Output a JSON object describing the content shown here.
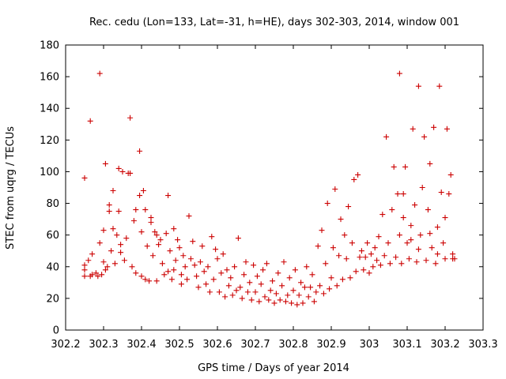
{
  "chart_data": {
    "type": "scatter",
    "title": "Rec. cedu (Lon=133, Lat=-31, h=HE), days 302-303, 2014, window 001",
    "xlabel": "GPS time / Days of year 2014",
    "ylabel": "STEC from uqrg / TECUs",
    "xlim": [
      302.2,
      303.3
    ],
    "ylim": [
      0,
      180
    ],
    "xticks": [
      "302.2",
      "302.3",
      "302.4",
      "302.5",
      "302.6",
      "302.7",
      "302.8",
      "302.9",
      "303",
      "303.1",
      "303.2",
      "303.3"
    ],
    "yticks": [
      "0",
      "20",
      "40",
      "60",
      "80",
      "100",
      "120",
      "140",
      "160",
      "180"
    ],
    "grid": false,
    "marker": "+",
    "marker_color": "#cc0000",
    "points": [
      [
        302.25,
        96
      ],
      [
        302.25,
        41
      ],
      [
        302.25,
        38
      ],
      [
        302.25,
        34
      ],
      [
        302.26,
        44
      ],
      [
        302.265,
        132
      ],
      [
        302.265,
        34
      ],
      [
        302.27,
        35
      ],
      [
        302.27,
        48
      ],
      [
        302.28,
        36
      ],
      [
        302.285,
        34
      ],
      [
        302.29,
        162
      ],
      [
        302.29,
        55
      ],
      [
        302.295,
        35
      ],
      [
        302.3,
        43
      ],
      [
        302.3,
        63
      ],
      [
        302.305,
        105
      ],
      [
        302.305,
        38
      ],
      [
        302.31,
        40
      ],
      [
        302.315,
        79
      ],
      [
        302.315,
        75
      ],
      [
        302.32,
        50
      ],
      [
        302.325,
        88
      ],
      [
        302.325,
        64
      ],
      [
        302.33,
        42
      ],
      [
        302.335,
        60
      ],
      [
        302.34,
        102
      ],
      [
        302.34,
        75
      ],
      [
        302.345,
        54
      ],
      [
        302.345,
        49
      ],
      [
        302.35,
        100
      ],
      [
        302.355,
        44
      ],
      [
        302.36,
        58
      ],
      [
        302.365,
        99
      ],
      [
        302.37,
        134
      ],
      [
        302.37,
        99
      ],
      [
        302.375,
        40
      ],
      [
        302.38,
        69
      ],
      [
        302.385,
        36
      ],
      [
        302.385,
        76
      ],
      [
        302.395,
        113
      ],
      [
        302.395,
        85
      ],
      [
        302.4,
        62
      ],
      [
        302.4,
        34
      ],
      [
        302.405,
        88
      ],
      [
        302.41,
        32
      ],
      [
        302.41,
        76
      ],
      [
        302.415,
        53
      ],
      [
        302.42,
        31
      ],
      [
        302.425,
        71
      ],
      [
        302.425,
        68
      ],
      [
        302.43,
        47
      ],
      [
        302.435,
        62
      ],
      [
        302.44,
        31
      ],
      [
        302.44,
        60
      ],
      [
        302.445,
        54
      ],
      [
        302.45,
        57
      ],
      [
        302.455,
        42
      ],
      [
        302.46,
        35
      ],
      [
        302.465,
        61
      ],
      [
        302.47,
        85
      ],
      [
        302.47,
        37
      ],
      [
        302.475,
        50
      ],
      [
        302.48,
        32
      ],
      [
        302.485,
        64
      ],
      [
        302.485,
        38
      ],
      [
        302.49,
        44
      ],
      [
        302.495,
        57
      ],
      [
        302.5,
        52
      ],
      [
        302.505,
        29
      ],
      [
        302.505,
        35
      ],
      [
        302.51,
        47
      ],
      [
        302.515,
        40
      ],
      [
        302.52,
        32
      ],
      [
        302.525,
        72
      ],
      [
        302.53,
        45
      ],
      [
        302.535,
        56
      ],
      [
        302.54,
        41
      ],
      [
        302.545,
        34
      ],
      [
        302.55,
        27
      ],
      [
        302.555,
        43
      ],
      [
        302.56,
        53
      ],
      [
        302.565,
        37
      ],
      [
        302.57,
        29
      ],
      [
        302.575,
        40
      ],
      [
        302.58,
        24
      ],
      [
        302.585,
        59
      ],
      [
        302.59,
        32
      ],
      [
        302.595,
        51
      ],
      [
        302.6,
        45
      ],
      [
        302.605,
        24
      ],
      [
        302.61,
        36
      ],
      [
        302.615,
        48
      ],
      [
        302.62,
        21
      ],
      [
        302.625,
        38
      ],
      [
        302.63,
        28
      ],
      [
        302.635,
        33
      ],
      [
        302.64,
        22
      ],
      [
        302.645,
        40
      ],
      [
        302.65,
        25
      ],
      [
        302.655,
        58
      ],
      [
        302.66,
        27
      ],
      [
        302.665,
        20
      ],
      [
        302.67,
        35
      ],
      [
        302.675,
        43
      ],
      [
        302.68,
        24
      ],
      [
        302.685,
        30
      ],
      [
        302.69,
        19
      ],
      [
        302.695,
        41
      ],
      [
        302.7,
        24
      ],
      [
        302.705,
        34
      ],
      [
        302.71,
        18
      ],
      [
        302.715,
        29
      ],
      [
        302.72,
        38
      ],
      [
        302.725,
        21
      ],
      [
        302.73,
        42
      ],
      [
        302.735,
        19
      ],
      [
        302.74,
        25
      ],
      [
        302.745,
        31
      ],
      [
        302.75,
        17
      ],
      [
        302.755,
        23
      ],
      [
        302.76,
        36
      ],
      [
        302.765,
        19
      ],
      [
        302.77,
        28
      ],
      [
        302.775,
        43
      ],
      [
        302.78,
        18
      ],
      [
        302.785,
        22
      ],
      [
        302.79,
        33
      ],
      [
        302.795,
        17
      ],
      [
        302.8,
        25
      ],
      [
        302.805,
        38
      ],
      [
        302.81,
        16
      ],
      [
        302.815,
        22
      ],
      [
        302.82,
        30
      ],
      [
        302.825,
        17
      ],
      [
        302.83,
        27
      ],
      [
        302.835,
        40
      ],
      [
        302.84,
        21
      ],
      [
        302.845,
        27
      ],
      [
        302.85,
        35
      ],
      [
        302.855,
        18
      ],
      [
        302.86,
        24
      ],
      [
        302.865,
        53
      ],
      [
        302.87,
        28
      ],
      [
        302.875,
        63
      ],
      [
        302.88,
        23
      ],
      [
        302.885,
        42
      ],
      [
        302.89,
        80
      ],
      [
        302.895,
        26
      ],
      [
        302.9,
        33
      ],
      [
        302.905,
        52
      ],
      [
        302.91,
        89
      ],
      [
        302.915,
        28
      ],
      [
        302.92,
        47
      ],
      [
        302.925,
        70
      ],
      [
        302.93,
        32
      ],
      [
        302.935,
        60
      ],
      [
        302.94,
        45
      ],
      [
        302.945,
        78
      ],
      [
        302.95,
        33
      ],
      [
        302.955,
        55
      ],
      [
        302.96,
        95
      ],
      [
        302.965,
        37
      ],
      [
        302.97,
        98
      ],
      [
        302.975,
        46
      ],
      [
        302.98,
        50
      ],
      [
        302.985,
        38
      ],
      [
        302.99,
        46
      ],
      [
        302.995,
        55
      ],
      [
        303.0,
        36
      ],
      [
        303.005,
        48
      ],
      [
        303.01,
        40
      ],
      [
        303.015,
        52
      ],
      [
        303.02,
        44
      ],
      [
        303.025,
        59
      ],
      [
        303.03,
        41
      ],
      [
        303.035,
        73
      ],
      [
        303.04,
        47
      ],
      [
        303.045,
        122
      ],
      [
        303.05,
        55
      ],
      [
        303.055,
        42
      ],
      [
        303.06,
        76
      ],
      [
        303.065,
        103
      ],
      [
        303.07,
        46
      ],
      [
        303.075,
        86
      ],
      [
        303.08,
        60
      ],
      [
        303.085,
        42
      ],
      [
        303.09,
        71
      ],
      [
        303.095,
        103
      ],
      [
        303.1,
        55
      ],
      [
        303.105,
        45
      ],
      [
        303.11,
        66
      ],
      [
        303.115,
        127
      ],
      [
        303.12,
        79
      ],
      [
        303.125,
        43
      ],
      [
        303.13,
        154
      ],
      [
        303.135,
        60
      ],
      [
        303.14,
        90
      ],
      [
        303.145,
        122
      ],
      [
        303.15,
        44
      ],
      [
        303.155,
        76
      ],
      [
        303.16,
        105
      ],
      [
        303.165,
        52
      ],
      [
        303.17,
        128
      ],
      [
        303.175,
        42
      ],
      [
        303.18,
        65
      ],
      [
        303.185,
        154
      ],
      [
        303.19,
        87
      ],
      [
        303.195,
        55
      ],
      [
        303.2,
        45
      ],
      [
        303.205,
        127
      ],
      [
        303.21,
        86
      ],
      [
        303.215,
        98
      ],
      [
        303.22,
        45
      ],
      [
        303.225,
        45
      ],
      [
        303.08,
        162
      ],
      [
        303.09,
        86
      ],
      [
        303.11,
        57
      ],
      [
        303.13,
        51
      ],
      [
        303.16,
        61
      ],
      [
        303.18,
        48
      ],
      [
        303.2,
        71
      ],
      [
        303.22,
        48
      ]
    ]
  }
}
